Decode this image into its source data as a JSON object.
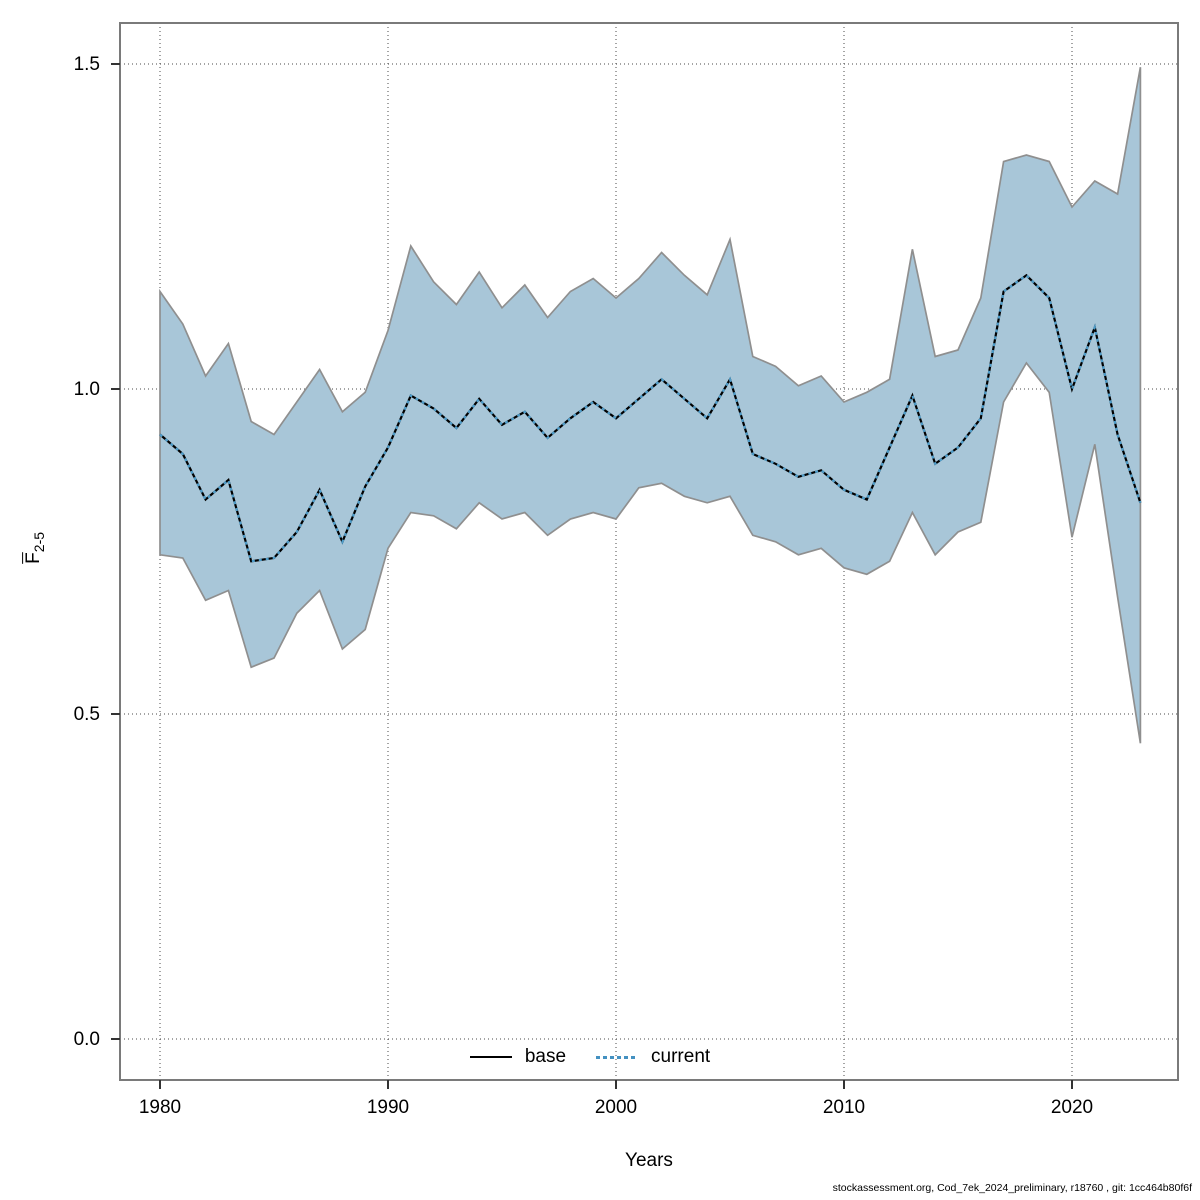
{
  "footer": "stockassessment.org, Cod_7ek_2024_preliminary, r18760 , git: 1cc464b80f6f",
  "legend": {
    "base_label": "base",
    "current_label": "current"
  },
  "axes": {
    "x_title": "Years",
    "y_title_main": "F",
    "y_title_sub": "2-5"
  },
  "chart_data": {
    "type": "line",
    "xlabel": "Years",
    "ylabel": "Fbar(2-5)",
    "x": [
      1980,
      1981,
      1982,
      1983,
      1984,
      1985,
      1986,
      1987,
      1988,
      1989,
      1990,
      1991,
      1992,
      1993,
      1994,
      1995,
      1996,
      1997,
      1998,
      1999,
      2000,
      2001,
      2002,
      2003,
      2004,
      2005,
      2006,
      2007,
      2008,
      2009,
      2010,
      2011,
      2012,
      2013,
      2014,
      2015,
      2016,
      2017,
      2018,
      2019,
      2020,
      2021,
      2022,
      2023
    ],
    "series": [
      {
        "name": "base",
        "style": "solid",
        "color": "#000000",
        "values": [
          0.93,
          0.9,
          0.83,
          0.86,
          0.735,
          0.74,
          0.78,
          0.845,
          0.765,
          0.85,
          0.91,
          0.99,
          0.97,
          0.94,
          0.985,
          0.945,
          0.965,
          0.925,
          0.955,
          0.98,
          0.955,
          0.985,
          1.015,
          0.985,
          0.955,
          1.015,
          0.9,
          0.885,
          0.865,
          0.875,
          0.845,
          0.83,
          0.91,
          0.99,
          0.885,
          0.91,
          0.955,
          1.15,
          1.175,
          1.14,
          1.0,
          1.095,
          0.93,
          0.825
        ]
      },
      {
        "name": "current",
        "style": "dotted",
        "color": "#4e9cc9",
        "values": [
          0.93,
          0.9,
          0.83,
          0.86,
          0.735,
          0.74,
          0.78,
          0.845,
          0.765,
          0.85,
          0.91,
          0.99,
          0.97,
          0.94,
          0.985,
          0.945,
          0.965,
          0.925,
          0.955,
          0.98,
          0.955,
          0.985,
          1.015,
          0.985,
          0.955,
          1.015,
          0.9,
          0.885,
          0.865,
          0.875,
          0.845,
          0.83,
          0.91,
          0.99,
          0.885,
          0.91,
          0.955,
          1.15,
          1.175,
          1.14,
          1.0,
          1.095,
          0.93,
          0.825
        ]
      }
    ],
    "band": {
      "name": "confidence-interval",
      "fill": "#a8c6d8",
      "edge": "#8f8f8f",
      "lower": [
        0.745,
        0.74,
        0.675,
        0.69,
        0.572,
        0.586,
        0.655,
        0.69,
        0.6,
        0.63,
        0.755,
        0.81,
        0.805,
        0.785,
        0.825,
        0.8,
        0.81,
        0.775,
        0.8,
        0.81,
        0.8,
        0.848,
        0.855,
        0.835,
        0.825,
        0.835,
        0.775,
        0.765,
        0.745,
        0.755,
        0.725,
        0.715,
        0.735,
        0.81,
        0.745,
        0.78,
        0.795,
        0.98,
        1.04,
        0.995,
        0.772,
        0.915,
        0.68,
        0.455
      ],
      "upper": [
        1.15,
        1.1,
        1.02,
        1.07,
        0.95,
        0.93,
        0.98,
        1.03,
        0.965,
        0.995,
        1.09,
        1.22,
        1.165,
        1.13,
        1.18,
        1.125,
        1.16,
        1.11,
        1.15,
        1.17,
        1.14,
        1.17,
        1.21,
        1.175,
        1.145,
        1.23,
        1.05,
        1.035,
        1.005,
        1.02,
        0.98,
        0.995,
        1.015,
        1.215,
        1.05,
        1.06,
        1.14,
        1.35,
        1.36,
        1.35,
        1.28,
        1.32,
        1.3,
        1.495
      ]
    },
    "xticks": [
      1980,
      1990,
      2000,
      2010,
      2020
    ],
    "yticks": [
      0.0,
      0.5,
      1.0,
      1.5
    ],
    "xlim": [
      1978.2,
      2024.6
    ],
    "ylim": [
      -0.06,
      1.56
    ],
    "grid": true,
    "legend_position": "bottom-center"
  }
}
